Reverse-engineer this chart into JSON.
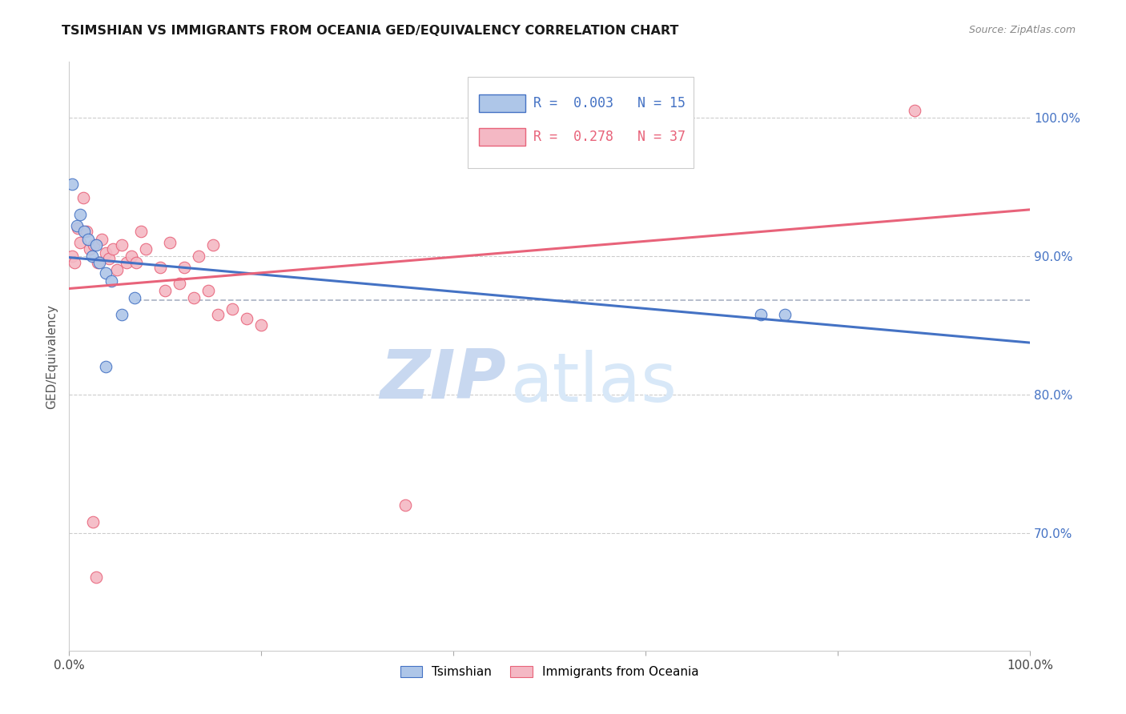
{
  "title": "TSIMSHIAN VS IMMIGRANTS FROM OCEANIA GED/EQUIVALENCY CORRELATION CHART",
  "source": "Source: ZipAtlas.com",
  "ylabel": "GED/Equivalency",
  "watermark_zip": "ZIP",
  "watermark_atlas": "atlas",
  "blue_label": "Tsimshian",
  "pink_label": "Immigrants from Oceania",
  "blue_R": "0.003",
  "blue_N": "15",
  "pink_R": "0.278",
  "pink_N": "37",
  "xmin": 0.0,
  "xmax": 1.0,
  "ymin": 0.615,
  "ymax": 1.04,
  "yticks": [
    0.7,
    0.8,
    0.9,
    1.0
  ],
  "ytick_labels": [
    "70.0%",
    "80.0%",
    "90.0%",
    "100.0%"
  ],
  "xticks": [
    0.0,
    0.2,
    0.4,
    0.6,
    0.8,
    1.0
  ],
  "xtick_labels": [
    "0.0%",
    "",
    "",
    "",
    "",
    "100.0%"
  ],
  "blue_x": [
    0.003,
    0.008,
    0.012,
    0.016,
    0.02,
    0.024,
    0.028,
    0.032,
    0.038,
    0.044,
    0.055,
    0.068,
    0.72,
    0.745,
    0.038
  ],
  "blue_y": [
    0.952,
    0.922,
    0.93,
    0.918,
    0.912,
    0.9,
    0.908,
    0.895,
    0.888,
    0.882,
    0.858,
    0.87,
    0.858,
    0.858,
    0.82
  ],
  "pink_x": [
    0.003,
    0.006,
    0.009,
    0.012,
    0.015,
    0.018,
    0.022,
    0.026,
    0.03,
    0.034,
    0.038,
    0.042,
    0.046,
    0.05,
    0.055,
    0.06,
    0.065,
    0.07,
    0.075,
    0.08,
    0.095,
    0.105,
    0.12,
    0.135,
    0.15,
    0.1,
    0.115,
    0.13,
    0.145,
    0.155,
    0.17,
    0.185,
    0.2,
    0.35,
    0.88,
    0.025,
    0.028
  ],
  "pink_y": [
    0.9,
    0.895,
    0.92,
    0.91,
    0.942,
    0.918,
    0.905,
    0.908,
    0.895,
    0.912,
    0.902,
    0.898,
    0.905,
    0.89,
    0.908,
    0.895,
    0.9,
    0.895,
    0.918,
    0.905,
    0.892,
    0.91,
    0.892,
    0.9,
    0.908,
    0.875,
    0.88,
    0.87,
    0.875,
    0.858,
    0.862,
    0.855,
    0.85,
    0.72,
    1.005,
    0.708,
    0.668
  ],
  "blue_line_color": "#4472c4",
  "pink_line_color": "#e8637a",
  "blue_dot_facecolor": "#aec6e8",
  "pink_dot_facecolor": "#f4b8c4",
  "dashed_line_color": "#b0b8c8",
  "grid_color": "#cccccc",
  "title_color": "#1a1a1a",
  "right_axis_color": "#4472c4",
  "watermark_zip_color": "#c8d8f0",
  "watermark_atlas_color": "#d8e8f8",
  "background_color": "#ffffff"
}
